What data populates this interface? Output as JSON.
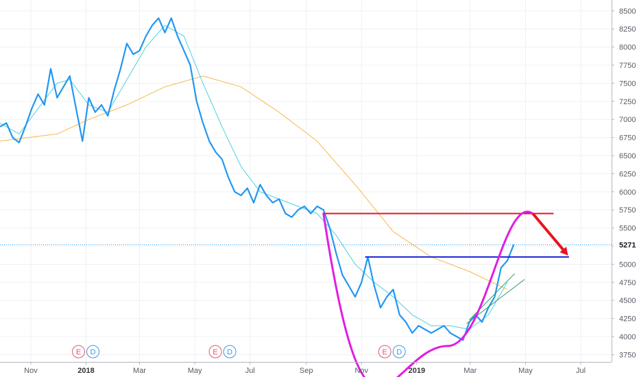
{
  "chart_data": {
    "type": "line",
    "title": "",
    "xlabel": "",
    "ylabel": "",
    "ylim": [
      3650,
      8650
    ],
    "y_ticks": [
      3750,
      4000,
      4250,
      4500,
      4750,
      5000,
      5250,
      5500,
      5750,
      6000,
      6250,
      6500,
      6750,
      7000,
      7250,
      7500,
      7750,
      8000,
      8250,
      8500
    ],
    "x_ticks": [
      {
        "label": "Nov",
        "date": "2017-11-01",
        "bold": false
      },
      {
        "label": "2018",
        "date": "2018-01-01",
        "bold": true
      },
      {
        "label": "Mar",
        "date": "2018-03-01",
        "bold": false
      },
      {
        "label": "May",
        "date": "2018-05-01",
        "bold": false
      },
      {
        "label": "Jul",
        "date": "2018-07-01",
        "bold": false
      },
      {
        "label": "Sep",
        "date": "2018-09-01",
        "bold": false
      },
      {
        "label": "Nov",
        "date": "2018-11-01",
        "bold": false
      },
      {
        "label": "2019",
        "date": "2019-01-01",
        "bold": true
      },
      {
        "label": "Mar",
        "date": "2019-03-01",
        "bold": false
      },
      {
        "label": "May",
        "date": "2019-05-01",
        "bold": false
      },
      {
        "label": "Jul",
        "date": "2019-07-01",
        "bold": false
      }
    ],
    "x_range": [
      "2017-09-28",
      "2019-08-04"
    ],
    "grid": true,
    "current_price": {
      "value": 5271,
      "label": "5271"
    },
    "series": [
      {
        "color": "#2196f3",
        "points": [
          [
            "2017-09-28",
            6900
          ],
          [
            "2017-10-05",
            6950
          ],
          [
            "2017-10-12",
            6750
          ],
          [
            "2017-10-19",
            6680
          ],
          [
            "2017-10-26",
            6900
          ],
          [
            "2017-11-02",
            7150
          ],
          [
            "2017-11-09",
            7350
          ],
          [
            "2017-11-16",
            7200
          ],
          [
            "2017-11-23",
            7700
          ],
          [
            "2017-11-30",
            7300
          ],
          [
            "2017-12-07",
            7450
          ],
          [
            "2017-12-14",
            7600
          ],
          [
            "2017-12-21",
            7150
          ],
          [
            "2017-12-28",
            6700
          ],
          [
            "2018-01-04",
            7300
          ],
          [
            "2018-01-11",
            7100
          ],
          [
            "2018-01-18",
            7200
          ],
          [
            "2018-01-25",
            7050
          ],
          [
            "2018-02-01",
            7400
          ],
          [
            "2018-02-08",
            7700
          ],
          [
            "2018-02-15",
            8050
          ],
          [
            "2018-02-22",
            7900
          ],
          [
            "2018-03-01",
            7950
          ],
          [
            "2018-03-08",
            8150
          ],
          [
            "2018-03-15",
            8300
          ],
          [
            "2018-03-22",
            8400
          ],
          [
            "2018-03-29",
            8200
          ],
          [
            "2018-04-05",
            8400
          ],
          [
            "2018-04-12",
            8150
          ],
          [
            "2018-04-19",
            7950
          ],
          [
            "2018-04-26",
            7750
          ],
          [
            "2018-05-03",
            7250
          ],
          [
            "2018-05-10",
            6950
          ],
          [
            "2018-05-17",
            6700
          ],
          [
            "2018-05-24",
            6550
          ],
          [
            "2018-05-31",
            6450
          ],
          [
            "2018-06-07",
            6200
          ],
          [
            "2018-06-14",
            6000
          ],
          [
            "2018-06-21",
            5950
          ],
          [
            "2018-06-28",
            6050
          ],
          [
            "2018-07-05",
            5850
          ],
          [
            "2018-07-12",
            6100
          ],
          [
            "2018-07-19",
            5950
          ],
          [
            "2018-07-26",
            5850
          ],
          [
            "2018-08-02",
            5900
          ],
          [
            "2018-08-09",
            5700
          ],
          [
            "2018-08-16",
            5650
          ],
          [
            "2018-08-23",
            5750
          ],
          [
            "2018-08-30",
            5800
          ],
          [
            "2018-09-06",
            5700
          ],
          [
            "2018-09-13",
            5800
          ],
          [
            "2018-09-20",
            5750
          ],
          [
            "2018-09-27",
            5500
          ],
          [
            "2018-10-04",
            5150
          ],
          [
            "2018-10-11",
            4850
          ],
          [
            "2018-10-18",
            4700
          ],
          [
            "2018-10-25",
            4550
          ],
          [
            "2018-11-01",
            4750
          ],
          [
            "2018-11-08",
            5100
          ],
          [
            "2018-11-15",
            4700
          ],
          [
            "2018-11-22",
            4400
          ],
          [
            "2018-11-29",
            4550
          ],
          [
            "2018-12-06",
            4650
          ],
          [
            "2018-12-13",
            4300
          ],
          [
            "2018-12-20",
            4200
          ],
          [
            "2018-12-27",
            4050
          ],
          [
            "2019-01-03",
            4150
          ],
          [
            "2019-01-10",
            4100
          ],
          [
            "2019-01-17",
            4050
          ],
          [
            "2019-01-24",
            4100
          ],
          [
            "2019-01-31",
            4150
          ],
          [
            "2019-02-07",
            4050
          ],
          [
            "2019-02-14",
            4000
          ],
          [
            "2019-02-21",
            3950
          ],
          [
            "2019-02-28",
            4200
          ],
          [
            "2019-03-07",
            4300
          ],
          [
            "2019-03-14",
            4200
          ],
          [
            "2019-03-21",
            4400
          ],
          [
            "2019-03-28",
            4550
          ],
          [
            "2019-04-04",
            4950
          ],
          [
            "2019-04-11",
            5050
          ],
          [
            "2019-04-18",
            5271
          ]
        ]
      },
      {
        "color": "#4dd0e1",
        "points": [
          [
            "2017-09-28",
            6950
          ],
          [
            "2017-10-19",
            6800
          ],
          [
            "2017-11-09",
            7150
          ],
          [
            "2017-11-30",
            7500
          ],
          [
            "2017-12-14",
            7550
          ],
          [
            "2018-01-04",
            7200
          ],
          [
            "2018-01-25",
            7100
          ],
          [
            "2018-02-15",
            7550
          ],
          [
            "2018-03-08",
            8000
          ],
          [
            "2018-03-29",
            8300
          ],
          [
            "2018-04-19",
            8150
          ],
          [
            "2018-05-10",
            7500
          ],
          [
            "2018-05-31",
            6900
          ],
          [
            "2018-06-21",
            6350
          ],
          [
            "2018-07-12",
            6000
          ],
          [
            "2018-08-02",
            5900
          ],
          [
            "2018-08-23",
            5800
          ],
          [
            "2018-09-13",
            5700
          ],
          [
            "2018-10-04",
            5400
          ],
          [
            "2018-10-25",
            5000
          ],
          [
            "2018-11-15",
            4750
          ],
          [
            "2018-12-06",
            4550
          ],
          [
            "2018-12-27",
            4300
          ],
          [
            "2019-01-17",
            4150
          ],
          [
            "2019-02-07",
            4150
          ],
          [
            "2019-02-28",
            4100
          ],
          [
            "2019-03-21",
            4300
          ],
          [
            "2019-04-11",
            4750
          ]
        ]
      },
      {
        "color": "#f5b94a",
        "points": [
          [
            "2017-09-28",
            6700
          ],
          [
            "2017-11-30",
            6800
          ],
          [
            "2018-01-04",
            7000
          ],
          [
            "2018-02-15",
            7200
          ],
          [
            "2018-03-29",
            7450
          ],
          [
            "2018-05-10",
            7600
          ],
          [
            "2018-06-21",
            7450
          ],
          [
            "2018-08-02",
            7100
          ],
          [
            "2018-09-13",
            6700
          ],
          [
            "2018-10-25",
            6100
          ],
          [
            "2018-12-06",
            5450
          ],
          [
            "2019-01-17",
            5100
          ],
          [
            "2019-02-28",
            4900
          ],
          [
            "2019-04-11",
            4650
          ]
        ]
      }
    ],
    "annotations": {
      "resistance_line": {
        "color": "#e8131f",
        "value": 5700,
        "from": "2018-09-20",
        "to": "2019-06-01"
      },
      "handle_line": {
        "color": "#1a22d9",
        "value": 5100,
        "from": "2018-11-05",
        "to": "2019-06-18"
      },
      "cup_curve": {
        "color": "#e21ce0",
        "start": [
          "2018-09-20",
          5700
        ],
        "bottom": [
          "2019-02-04",
          3870
        ],
        "end": [
          "2019-05-09",
          5700
        ]
      },
      "breakdown_arrow": {
        "color": "#e8131f",
        "from": [
          "2019-05-09",
          5700
        ],
        "to": [
          "2019-06-17",
          5120
        ]
      },
      "trend_lines": [
        {
          "color": "#2e9a5e",
          "from": [
            "2019-02-25",
            4180
          ],
          "to": [
            "2019-04-30",
            4790
          ]
        },
        {
          "color": "#2e9a5e",
          "from": [
            "2019-02-28",
            4230
          ],
          "to": [
            "2019-04-19",
            4870
          ]
        }
      ],
      "event_badges": [
        {
          "date": "2018-01-01",
          "items": [
            {
              "text": "E",
              "color": "#e0556b"
            },
            {
              "text": "D",
              "color": "#3a96dd"
            }
          ]
        },
        {
          "date": "2018-06-01",
          "items": [
            {
              "text": "E",
              "color": "#e0556b"
            },
            {
              "text": "D",
              "color": "#3a96dd"
            }
          ]
        },
        {
          "date": "2018-12-05",
          "items": [
            {
              "text": "E",
              "color": "#e0556b"
            },
            {
              "text": "D",
              "color": "#3a96dd"
            }
          ]
        }
      ]
    }
  }
}
